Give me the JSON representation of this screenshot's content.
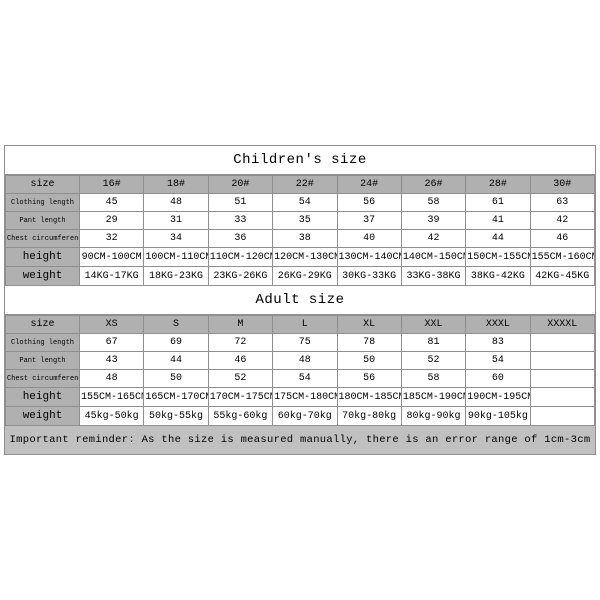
{
  "colors": {
    "border": "#8f8f8f",
    "header_bg": "#b0b0b0",
    "reminder_bg": "#c0c0c0",
    "page_bg": "#ffffff",
    "text": "#000000"
  },
  "children": {
    "title": "Children's size",
    "headers": [
      "size",
      "16#",
      "18#",
      "20#",
      "22#",
      "24#",
      "26#",
      "28#",
      "30#"
    ],
    "rows": [
      {
        "label": "Clothing length",
        "label_small": true,
        "cells": [
          "45",
          "48",
          "51",
          "54",
          "56",
          "58",
          "61",
          "63"
        ]
      },
      {
        "label": "Pant length",
        "label_small": true,
        "cells": [
          "29",
          "31",
          "33",
          "35",
          "37",
          "39",
          "41",
          "42"
        ]
      },
      {
        "label": "Chest circumference 1/2",
        "label_small": true,
        "cells": [
          "32",
          "34",
          "36",
          "38",
          "40",
          "42",
          "44",
          "46"
        ]
      },
      {
        "label": "height",
        "label_small": false,
        "cells": [
          "90CM-100CM",
          "100CM-110CM",
          "110CM-120CM",
          "120CM-130CM",
          "130CM-140CM",
          "140CM-150CM",
          "150CM-155CM",
          "155CM-160CM"
        ]
      },
      {
        "label": "weight",
        "label_small": false,
        "cells": [
          "14KG-17KG",
          "18KG-23KG",
          "23KG-26KG",
          "26KG-29KG",
          "30KG-33KG",
          "33KG-38KG",
          "38KG-42KG",
          "42KG-45KG"
        ]
      }
    ]
  },
  "adult": {
    "title": "Adult size",
    "headers": [
      "size",
      "XS",
      "S",
      "M",
      "L",
      "XL",
      "XXL",
      "XXXL",
      "XXXXL"
    ],
    "rows": [
      {
        "label": "Clothing length",
        "label_small": true,
        "cells": [
          "67",
          "69",
          "72",
          "75",
          "78",
          "81",
          "83",
          ""
        ]
      },
      {
        "label": "Pant length",
        "label_small": true,
        "cells": [
          "43",
          "44",
          "46",
          "48",
          "50",
          "52",
          "54",
          ""
        ]
      },
      {
        "label": "Chest circumference 1/2",
        "label_small": true,
        "cells": [
          "48",
          "50",
          "52",
          "54",
          "56",
          "58",
          "60",
          ""
        ]
      },
      {
        "label": "height",
        "label_small": false,
        "cells": [
          "155CM-165CM",
          "165CM-170CM",
          "170CM-175CM",
          "175CM-180CM",
          "180CM-185CM",
          "185CM-190CM",
          "190CM-195CM",
          ""
        ]
      },
      {
        "label": "weight",
        "label_small": false,
        "cells": [
          "45kg-50kg",
          "50kg-55kg",
          "55kg-60kg",
          "60kg-70kg",
          "70kg-80kg",
          "80kg-90kg",
          "90kg-105kg",
          ""
        ]
      }
    ]
  },
  "reminder": "Important reminder: As the size is measured manually, there is an error range of 1cm-3cm"
}
